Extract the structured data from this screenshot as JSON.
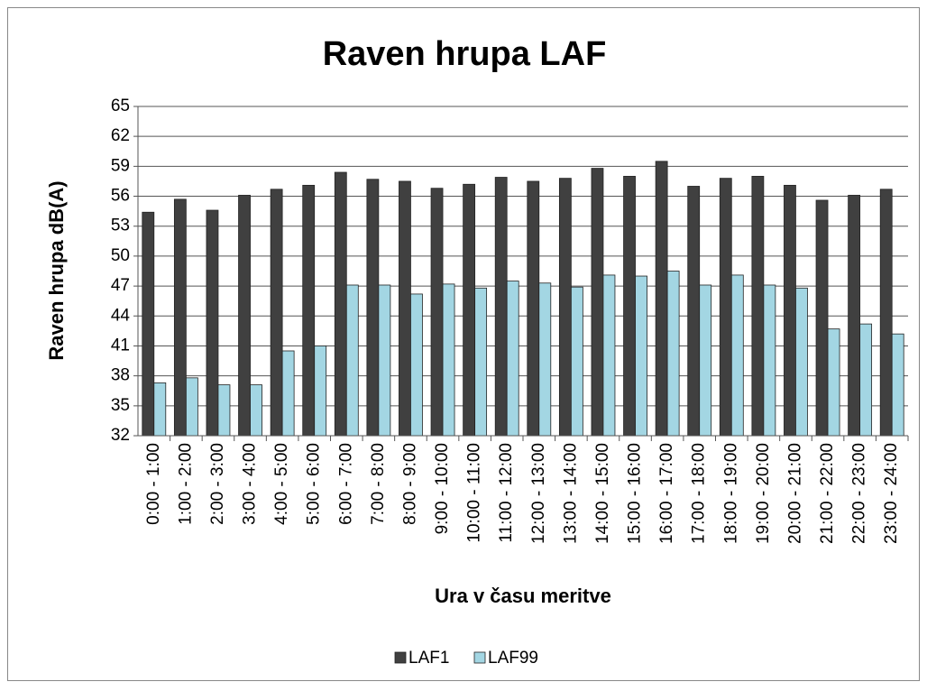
{
  "chart_data": {
    "type": "bar",
    "title": "Raven hrupa LAF",
    "x_label": "Ura v času meritve",
    "y_label": "Raven hrupa  dB(A)",
    "categories": [
      "0:00 - 1:00",
      "1:00 - 2:00",
      "2:00 - 3:00",
      "3:00 - 4:00",
      "4:00 - 5:00",
      "5:00 - 6:00",
      "6:00 - 7:00",
      "7:00 - 8:00",
      "8:00 - 9:00",
      "9:00 - 10:00",
      "10:00 - 11:00",
      "11:00 - 12:00",
      "12:00 - 13:00",
      "13:00 - 14:00",
      "14:00 - 15:00",
      "15:00 - 16:00",
      "16:00 - 17:00",
      "17:00 - 18:00",
      "18:00 - 19:00",
      "19:00 - 20:00",
      "20:00 - 21:00",
      "21:00 - 22:00",
      "22:00 - 23:00",
      "23:00 - 24:00"
    ],
    "series": [
      {
        "name": "LAF1",
        "color": "#404040",
        "values": [
          54.4,
          55.7,
          54.6,
          56.1,
          56.7,
          57.1,
          58.4,
          57.7,
          57.5,
          56.8,
          57.2,
          57.9,
          57.5,
          57.8,
          58.8,
          58.0,
          59.5,
          57.0,
          57.8,
          58.0,
          57.1,
          55.6,
          56.1,
          56.7
        ]
      },
      {
        "name": "LAF99",
        "color": "#a3d6e3",
        "values": [
          37.3,
          37.8,
          37.1,
          37.1,
          40.5,
          41.0,
          47.1,
          47.1,
          46.2,
          47.2,
          46.8,
          47.5,
          47.3,
          46.9,
          48.1,
          48.0,
          48.5,
          47.1,
          48.1,
          47.1,
          46.8,
          42.7,
          43.2,
          42.2
        ]
      }
    ],
    "ylim": [
      32,
      65
    ],
    "yticks": [
      32,
      35,
      38,
      41,
      44,
      47,
      50,
      53,
      56,
      59,
      62,
      65
    ],
    "grid": true,
    "legend": "bottom"
  }
}
